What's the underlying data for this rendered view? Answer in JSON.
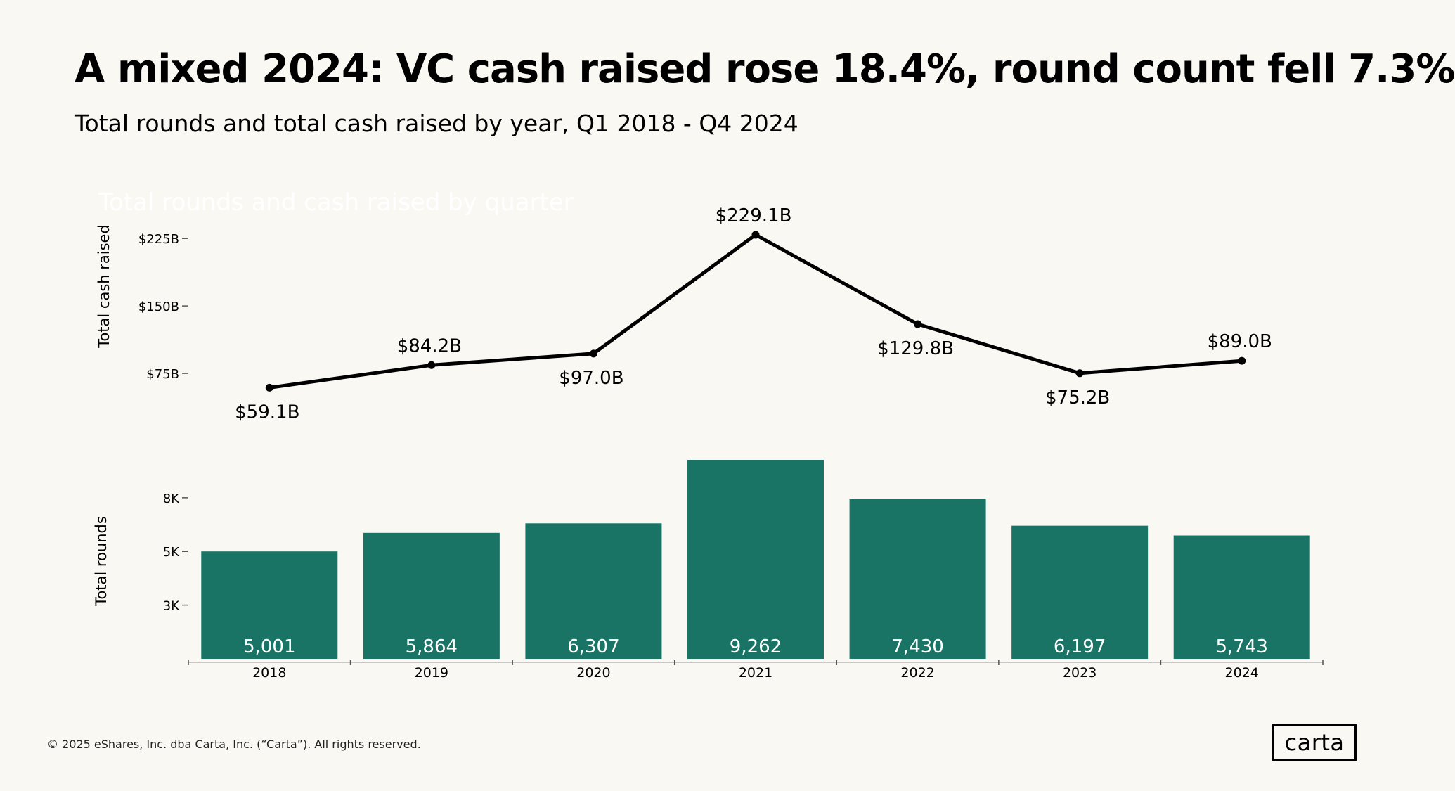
{
  "header": {
    "title": "A mixed 2024: VC cash raised rose 18.4%, round count fell 7.3%",
    "subtitle": "Total rounds and total cash raised by year, Q1 2018 - Q4 2024",
    "ghost_title": "Total rounds and cash raised by quarter"
  },
  "footer": {
    "copyright": "© 2025 eShares, Inc. dba Carta, Inc. (“Carta”). All rights reserved.",
    "logo_text": "carta"
  },
  "colors": {
    "bar": "#1A7465",
    "line": "#000000",
    "background": "#FAF8F3",
    "axis": "#555555"
  },
  "chart_data": [
    {
      "type": "line",
      "title": "Total cash raised",
      "ylabel": "Total cash raised",
      "categories": [
        "2018",
        "2019",
        "2020",
        "2021",
        "2022",
        "2023",
        "2024"
      ],
      "values": [
        59.1,
        84.2,
        97.0,
        229.1,
        129.8,
        75.2,
        89.0
      ],
      "data_labels": [
        "$59.1B",
        "$84.2B",
        "$97.0B",
        "$229.1B",
        "$129.8B",
        "$75.2B",
        "$89.0B"
      ],
      "label_positions": [
        "below",
        "above",
        "below",
        "above",
        "below",
        "below",
        "above"
      ],
      "yticks": [
        75,
        150,
        225
      ],
      "ytick_labels": [
        "$75B",
        "$150B",
        "$225B"
      ],
      "ylim": [
        0,
        240
      ]
    },
    {
      "type": "bar",
      "title": "Total rounds",
      "ylabel": "Total rounds",
      "categories": [
        "2018",
        "2019",
        "2020",
        "2021",
        "2022",
        "2023",
        "2024"
      ],
      "values": [
        5001,
        5864,
        6307,
        9262,
        7430,
        6197,
        5743
      ],
      "data_labels": [
        "5,001",
        "5,864",
        "6,307",
        "9,262",
        "7,430",
        "6,197",
        "5,743"
      ],
      "yticks": [
        2500,
        5000,
        7500
      ],
      "ytick_labels": [
        "3K",
        "5K",
        "8K"
      ],
      "ylim": [
        0,
        9262
      ]
    }
  ]
}
